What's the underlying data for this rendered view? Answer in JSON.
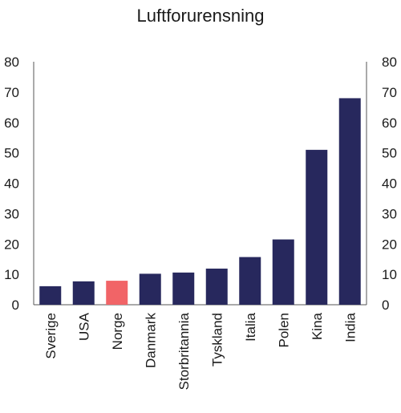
{
  "chart_data": {
    "type": "bar",
    "title": "Luftforurensning",
    "xlabel": "",
    "ylabel": "",
    "ylim": [
      0,
      80
    ],
    "yticks": [
      0,
      10,
      20,
      30,
      40,
      50,
      60,
      70,
      80
    ],
    "right_axis": true,
    "grid": false,
    "categories": [
      "Sverige",
      "USA",
      "Norge",
      "Danmark",
      "Storbritannia",
      "Tyskland",
      "Italia",
      "Polen",
      "Kina",
      "India"
    ],
    "values": [
      6.1,
      7.7,
      7.9,
      10.2,
      10.6,
      11.9,
      15.7,
      21.5,
      51.0,
      68.0
    ],
    "colors": {
      "default": "#27285d",
      "highlight": "#f16467"
    },
    "highlight_category": "Norge"
  }
}
